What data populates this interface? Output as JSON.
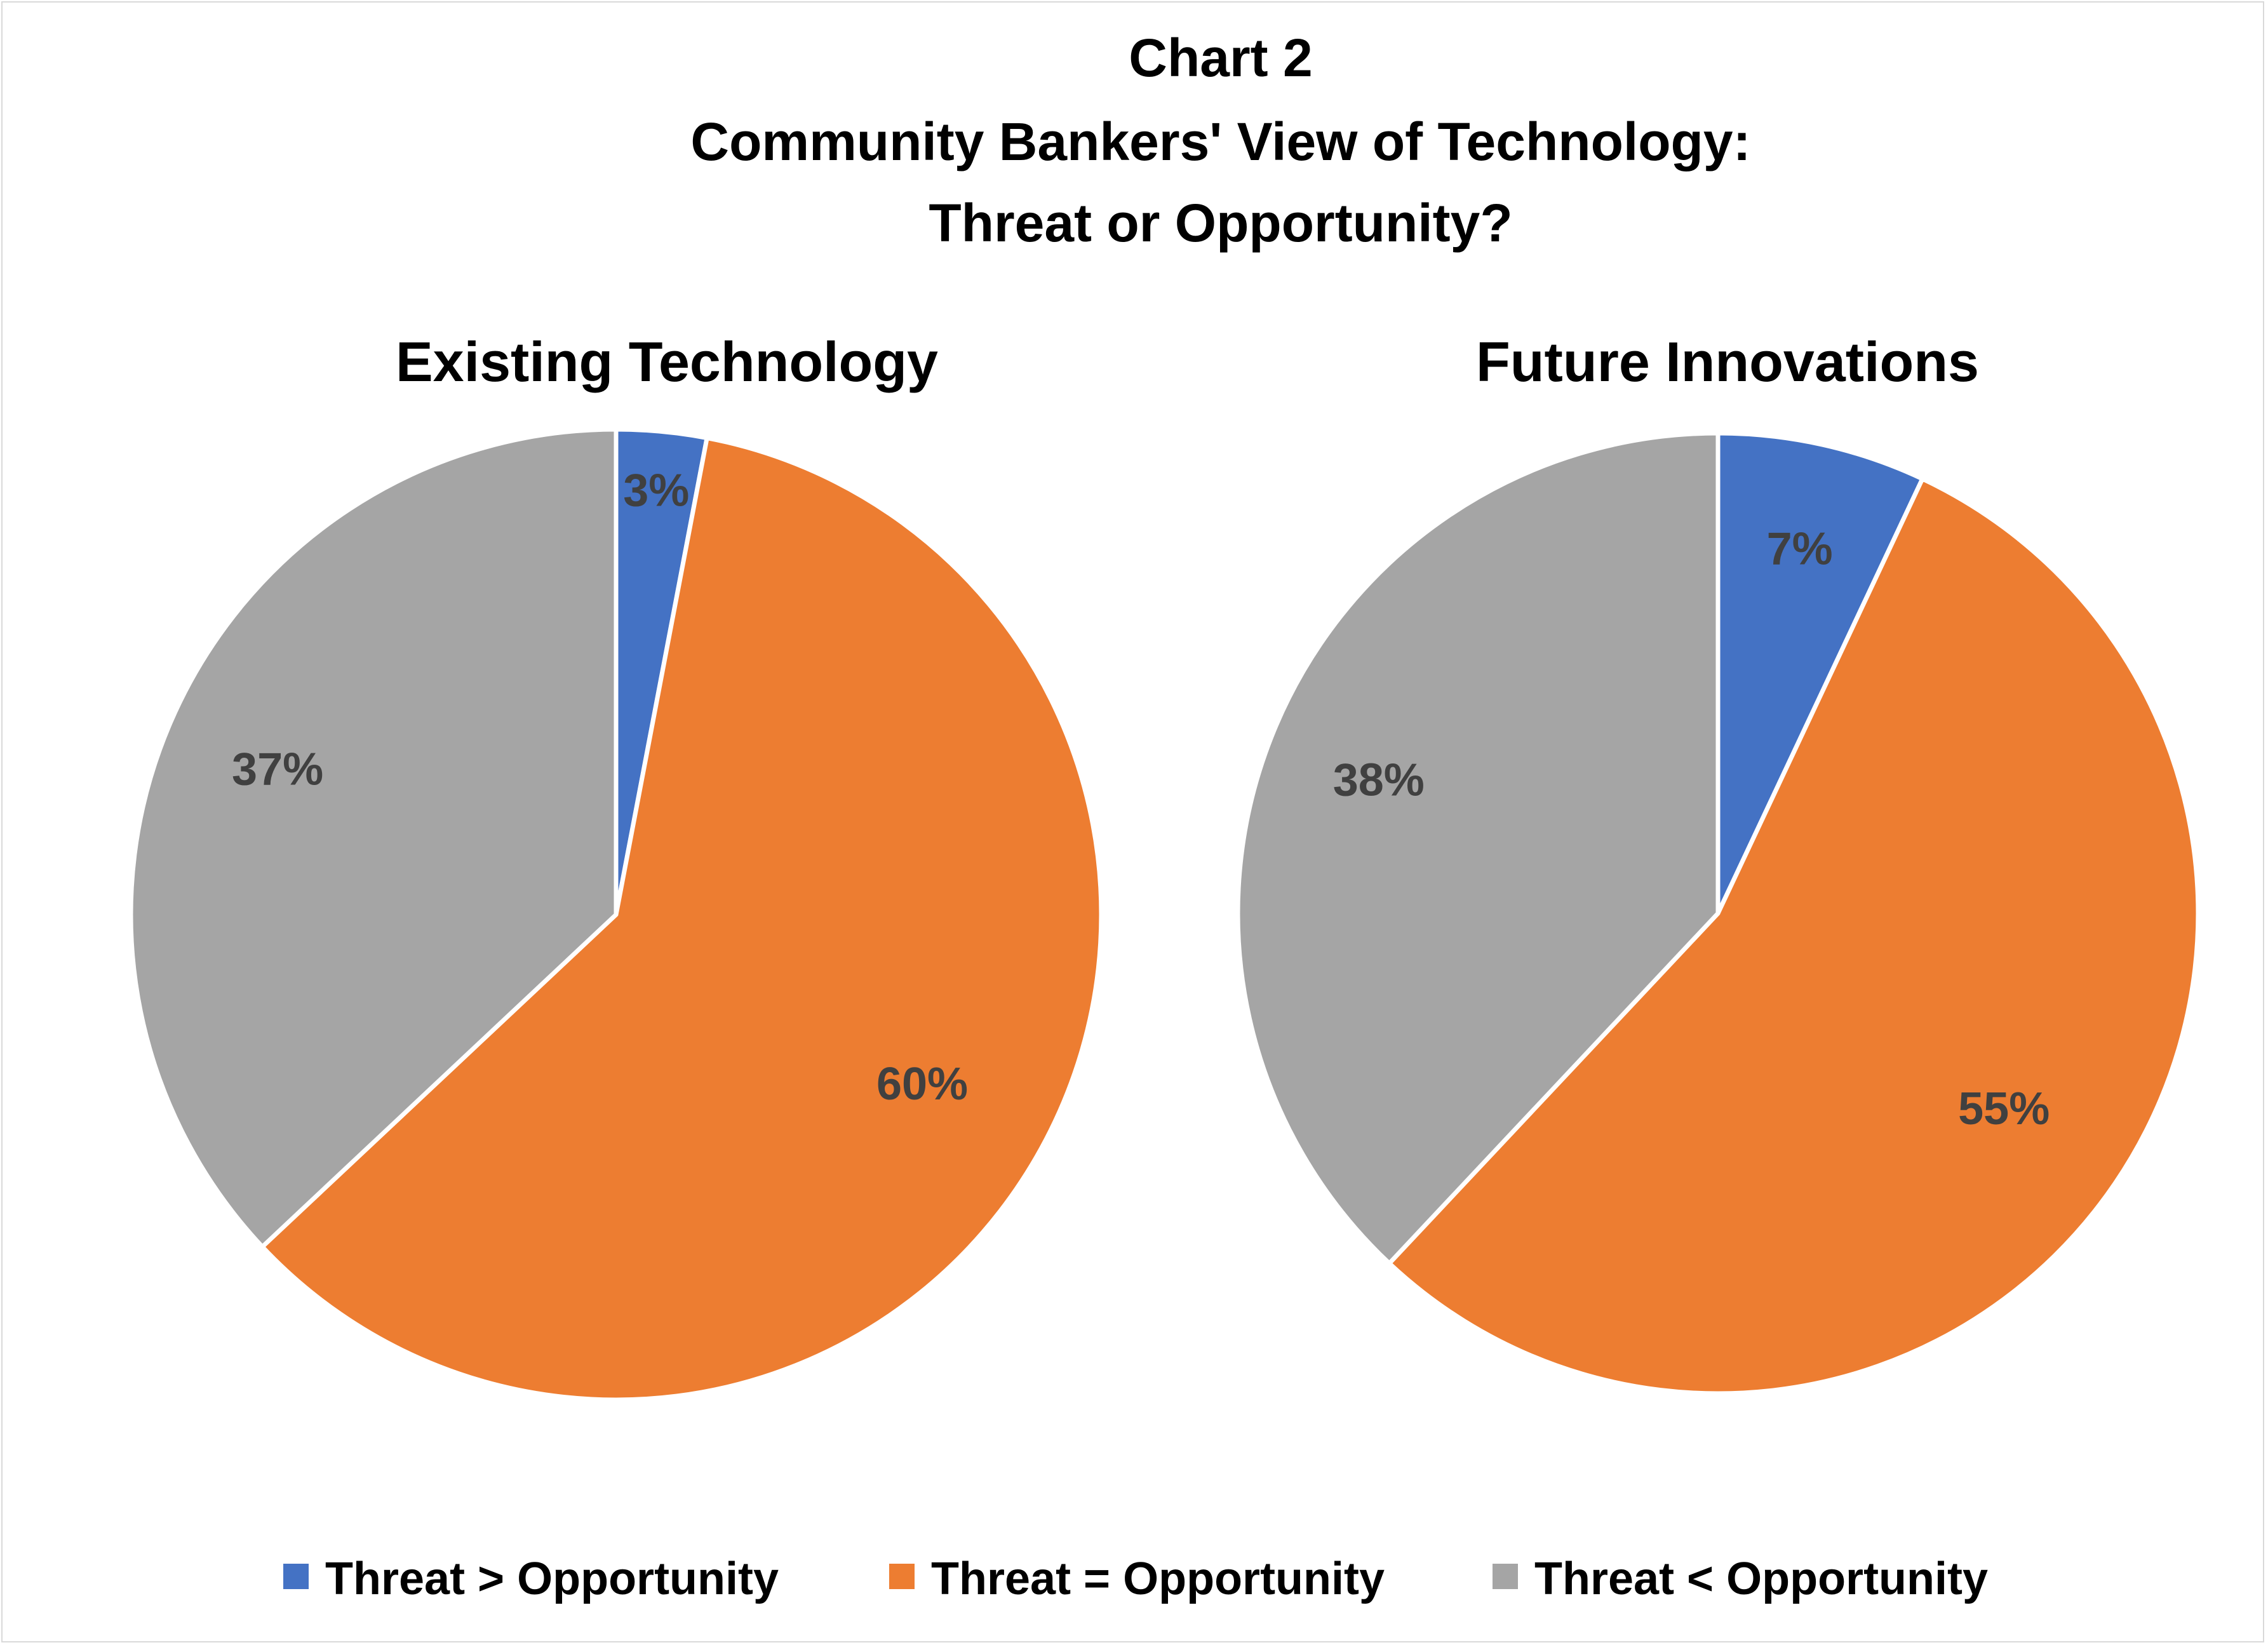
{
  "chart_data": {
    "type": "pie",
    "title": [
      "Chart 2",
      "Community Bankers' View of Technology:",
      "Threat or Opportunity?"
    ],
    "legend_position": "bottom",
    "categories": [
      "Threat > Opportunity",
      "Threat = Opportunity",
      "Threat < Opportunity"
    ],
    "colors": [
      "#4472C4",
      "#ED7D31",
      "#A5A5A5"
    ],
    "charts": [
      {
        "name": "Existing Technology",
        "values": [
          3,
          60,
          37
        ],
        "labels": [
          "3%",
          "60%",
          "37%"
        ]
      },
      {
        "name": "Future Innovations",
        "values": [
          7,
          55,
          38
        ],
        "labels": [
          "7%",
          "55%",
          "38%"
        ]
      }
    ]
  }
}
